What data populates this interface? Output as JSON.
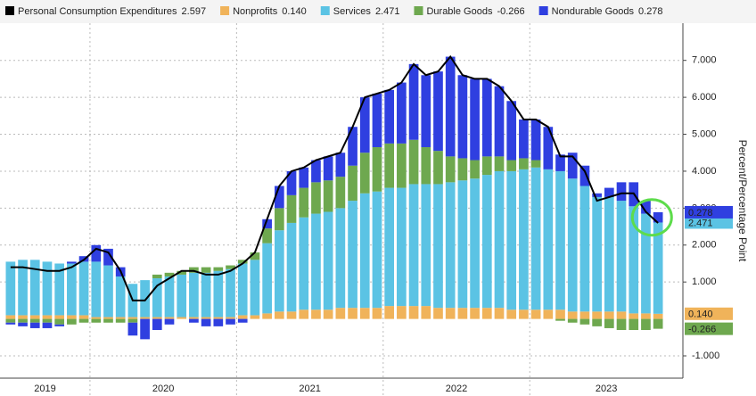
{
  "chart_data": {
    "type": "stacked-bar-line",
    "y_label": "Percent/Percentage Point",
    "categories": [
      "2019",
      "2019",
      "2019",
      "2019",
      "2019",
      "2019",
      "2019",
      "2020",
      "2020",
      "2020",
      "2020",
      "2020",
      "2020",
      "2020",
      "2020",
      "2020",
      "2020",
      "2020",
      "2020",
      "2021",
      "2021",
      "2021",
      "2021",
      "2021",
      "2021",
      "2021",
      "2021",
      "2021",
      "2021",
      "2021",
      "2021",
      "2022",
      "2022",
      "2022",
      "2022",
      "2022",
      "2022",
      "2022",
      "2022",
      "2022",
      "2022",
      "2022",
      "2022",
      "2023",
      "2023",
      "2023",
      "2023",
      "2023",
      "2023",
      "2023",
      "2023",
      "2023",
      "2023",
      "2023"
    ],
    "series": [
      {
        "name": "Personal Consumption Expenditures",
        "kind": "line",
        "color": "#000000",
        "last_label": "2.597",
        "values": [
          1.4,
          1.4,
          1.35,
          1.3,
          1.3,
          1.4,
          1.6,
          1.9,
          1.8,
          1.3,
          0.5,
          0.5,
          0.9,
          1.1,
          1.3,
          1.3,
          1.2,
          1.2,
          1.3,
          1.5,
          1.8,
          2.7,
          3.6,
          4.0,
          4.1,
          4.3,
          4.4,
          4.5,
          5.2,
          6.0,
          6.1,
          6.2,
          6.4,
          6.9,
          6.6,
          6.7,
          7.1,
          6.6,
          6.5,
          6.5,
          6.3,
          5.9,
          5.4,
          5.4,
          5.2,
          4.4,
          4.4,
          4.0,
          3.2,
          3.3,
          3.4,
          3.4,
          2.9,
          2.597
        ]
      },
      {
        "name": "Nonprofits",
        "kind": "bar",
        "color": "#f0b35a",
        "last_label": "0.140",
        "values": [
          0.1,
          0.1,
          0.1,
          0.1,
          0.1,
          0.1,
          0.1,
          0.05,
          0.05,
          0.05,
          0.05,
          0.05,
          0.05,
          0.05,
          0.05,
          0.05,
          0.05,
          0.05,
          0.05,
          0.1,
          0.1,
          0.15,
          0.2,
          0.2,
          0.25,
          0.25,
          0.25,
          0.3,
          0.3,
          0.3,
          0.3,
          0.35,
          0.35,
          0.35,
          0.35,
          0.3,
          0.3,
          0.3,
          0.3,
          0.3,
          0.3,
          0.25,
          0.25,
          0.25,
          0.25,
          0.25,
          0.2,
          0.2,
          0.2,
          0.2,
          0.2,
          0.15,
          0.15,
          0.14
        ]
      },
      {
        "name": "Services",
        "kind": "bar",
        "color": "#5bc3e4",
        "last_label": "2.471",
        "values": [
          1.45,
          1.5,
          1.5,
          1.45,
          1.4,
          1.4,
          1.45,
          1.5,
          1.4,
          1.1,
          0.9,
          1.0,
          1.05,
          1.1,
          1.15,
          1.2,
          1.2,
          1.25,
          1.3,
          1.4,
          1.5,
          1.9,
          2.2,
          2.4,
          2.5,
          2.6,
          2.65,
          2.7,
          2.9,
          3.1,
          3.15,
          3.2,
          3.2,
          3.3,
          3.3,
          3.35,
          3.4,
          3.45,
          3.5,
          3.6,
          3.7,
          3.75,
          3.8,
          3.85,
          3.8,
          3.75,
          3.6,
          3.4,
          3.1,
          3.1,
          3.0,
          2.9,
          2.7,
          2.471
        ]
      },
      {
        "name": "Durable Goods",
        "kind": "bar",
        "color": "#6ea84f",
        "last_label": "-0.266",
        "values": [
          -0.1,
          -0.1,
          -0.1,
          -0.1,
          -0.15,
          -0.15,
          -0.1,
          -0.1,
          -0.1,
          -0.1,
          -0.1,
          0.0,
          0.1,
          0.1,
          0.1,
          0.15,
          0.15,
          0.1,
          0.1,
          0.1,
          0.2,
          0.4,
          0.6,
          0.75,
          0.8,
          0.85,
          0.85,
          0.85,
          0.95,
          1.1,
          1.2,
          1.2,
          1.2,
          1.2,
          1.0,
          0.9,
          0.7,
          0.6,
          0.5,
          0.5,
          0.4,
          0.3,
          0.3,
          0.2,
          0.0,
          -0.05,
          -0.1,
          -0.15,
          -0.2,
          -0.25,
          -0.3,
          -0.3,
          -0.3,
          -0.266
        ]
      },
      {
        "name": "Nondurable Goods",
        "kind": "bar",
        "color": "#2f3fe0",
        "last_label": "0.278",
        "values": [
          -0.05,
          -0.1,
          -0.15,
          -0.15,
          -0.05,
          0.05,
          0.15,
          0.45,
          0.45,
          0.25,
          -0.35,
          -0.55,
          -0.3,
          -0.15,
          0.0,
          -0.1,
          -0.2,
          -0.2,
          -0.15,
          -0.1,
          0.0,
          0.25,
          0.6,
          0.65,
          0.55,
          0.6,
          0.65,
          0.65,
          1.05,
          1.5,
          1.45,
          1.45,
          1.65,
          2.05,
          1.95,
          2.15,
          2.7,
          2.25,
          2.2,
          2.1,
          1.9,
          1.6,
          1.05,
          1.1,
          1.15,
          0.45,
          0.7,
          0.55,
          0.1,
          0.25,
          0.5,
          0.65,
          0.35,
          0.278
        ]
      }
    ],
    "ylim": [
      -1.7,
      8.2
    ],
    "yticks": [
      {
        "value": -1,
        "label": "-1.000"
      },
      {
        "value": 1,
        "label": "1.000"
      },
      {
        "value": 2,
        "label": "2.000"
      },
      {
        "value": 3,
        "label": "3.000"
      },
      {
        "value": 4,
        "label": "4.000"
      },
      {
        "value": 5,
        "label": "5.000"
      },
      {
        "value": 6,
        "label": "6.000"
      },
      {
        "value": 7,
        "label": "7.000"
      }
    ],
    "grid": true
  }
}
